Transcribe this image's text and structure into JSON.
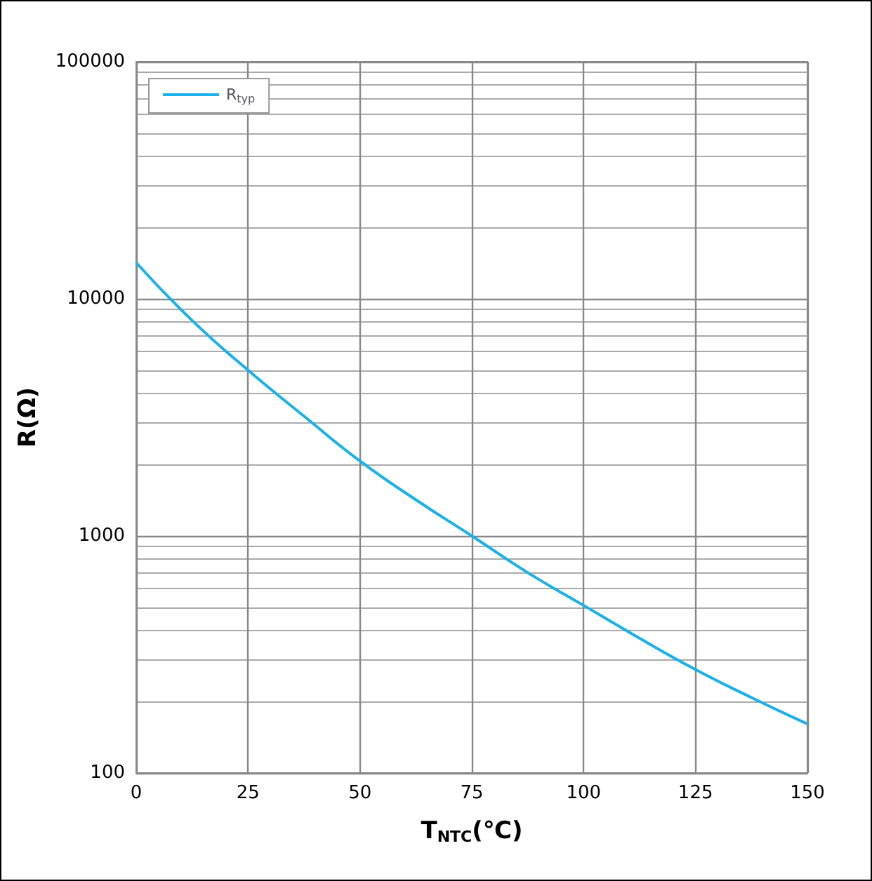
{
  "chart_data": {
    "type": "line",
    "xlabel": "T$_{NTC}$(℃)",
    "ylabel": "R(Ω)",
    "x": [
      0,
      12.5,
      25,
      37.5,
      50,
      62.5,
      75,
      87.5,
      100,
      112.5,
      125,
      137.5,
      150
    ],
    "series": [
      {
        "name": "R$_{typ}$",
        "color": "#1ab0ea",
        "values": [
          14200,
          8100,
          5000,
          3200,
          2070,
          1420,
          1000,
          700,
          509,
          370,
          273,
          208,
          161
        ]
      }
    ],
    "xlim": [
      0,
      150
    ],
    "xticks": [
      0,
      25,
      50,
      75,
      100,
      125,
      150
    ],
    "ylim": [
      100,
      100000
    ],
    "yticks": [
      100,
      1000,
      10000,
      100000
    ],
    "log": "y",
    "grid": true,
    "legend": "top left",
    "marker": "none",
    "line_style": "solid"
  }
}
